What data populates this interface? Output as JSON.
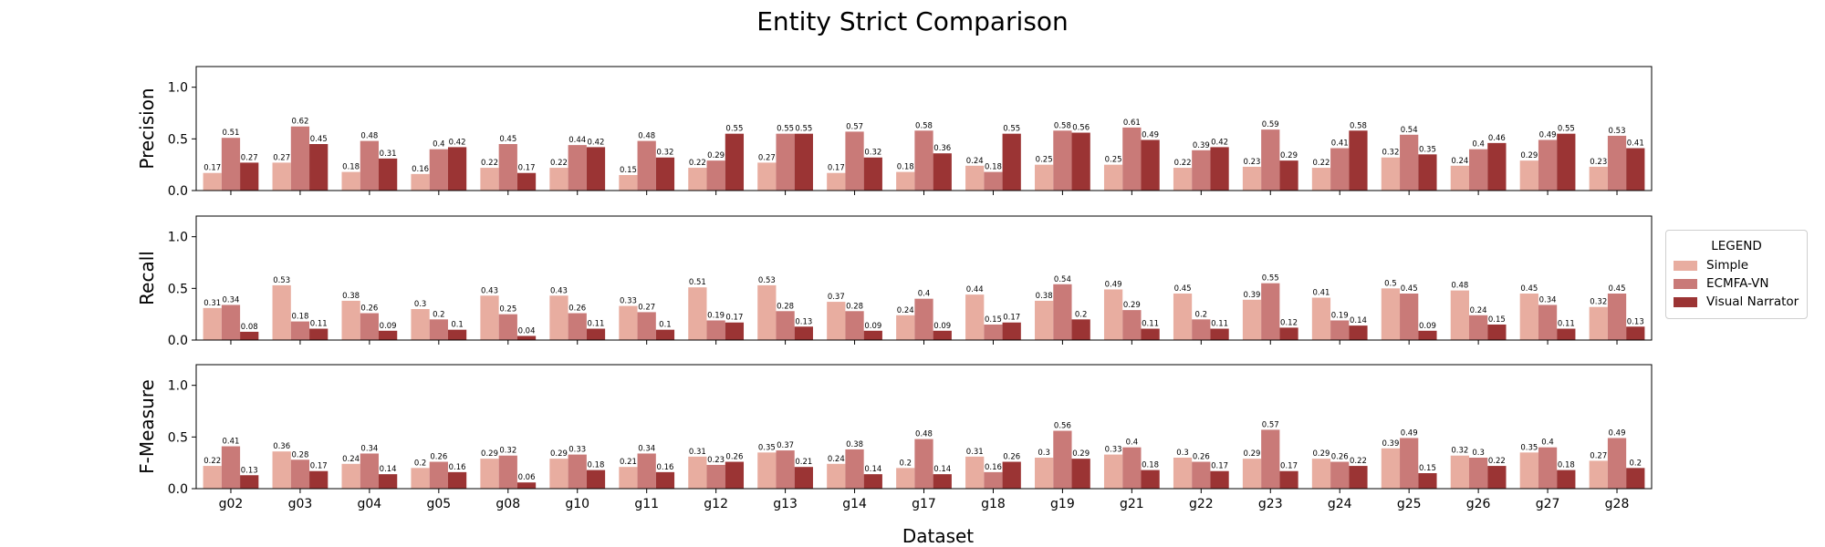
{
  "chart_data": {
    "type": "bar",
    "title": "Entity Strict Comparison",
    "xlabel": "Dataset",
    "categories": [
      "g02",
      "g03",
      "g04",
      "g05",
      "g08",
      "g10",
      "g11",
      "g12",
      "g13",
      "g14",
      "g17",
      "g18",
      "g19",
      "g21",
      "g22",
      "g23",
      "g24",
      "g25",
      "g26",
      "g27",
      "g28"
    ],
    "ylim": [
      0,
      1.2
    ],
    "yticks": [
      "0.0",
      "0.5",
      "1.0"
    ],
    "legend": {
      "title": "LEGEND",
      "placement": "right",
      "entries": [
        {
          "name": "Simple",
          "color": "#e8ada0"
        },
        {
          "name": "ECMFA-VN",
          "color": "#c97a78"
        },
        {
          "name": "Visual Narrator",
          "color": "#9b3434"
        }
      ]
    },
    "panels": [
      {
        "ylabel": "Precision",
        "series": [
          {
            "name": "Simple",
            "values": [
              0.17,
              0.27,
              0.18,
              0.16,
              0.22,
              0.22,
              0.15,
              0.22,
              0.27,
              0.17,
              0.18,
              0.24,
              0.25,
              0.25,
              0.22,
              0.23,
              0.22,
              0.32,
              0.24,
              0.29,
              0.23
            ]
          },
          {
            "name": "ECMFA-VN",
            "values": [
              0.51,
              0.62,
              0.48,
              0.4,
              0.45,
              0.44,
              0.48,
              0.29,
              0.55,
              0.57,
              0.58,
              0.18,
              0.58,
              0.61,
              0.39,
              0.59,
              0.41,
              0.54,
              0.4,
              0.49,
              0.53
            ]
          },
          {
            "name": "Visual Narrator",
            "values": [
              0.27,
              0.45,
              0.31,
              0.42,
              0.17,
              0.42,
              0.32,
              0.55,
              0.55,
              0.32,
              0.36,
              0.55,
              0.56,
              0.49,
              0.42,
              0.29,
              0.58,
              0.35,
              0.46,
              0.55,
              0.41
            ]
          }
        ]
      },
      {
        "ylabel": "Recall",
        "series": [
          {
            "name": "Simple",
            "values": [
              0.31,
              0.53,
              0.38,
              0.3,
              0.43,
              0.43,
              0.33,
              0.51,
              0.53,
              0.37,
              0.24,
              0.44,
              0.38,
              0.49,
              0.45,
              0.39,
              0.41,
              0.5,
              0.48,
              0.45,
              0.32
            ]
          },
          {
            "name": "ECMFA-VN",
            "values": [
              0.34,
              0.18,
              0.26,
              0.2,
              0.25,
              0.26,
              0.27,
              0.19,
              0.28,
              0.28,
              0.4,
              0.15,
              0.54,
              0.29,
              0.2,
              0.55,
              0.19,
              0.45,
              0.24,
              0.34,
              0.45
            ]
          },
          {
            "name": "Visual Narrator",
            "values": [
              0.08,
              0.11,
              0.09,
              0.1,
              0.04,
              0.11,
              0.1,
              0.17,
              0.13,
              0.09,
              0.09,
              0.17,
              0.2,
              0.11,
              0.11,
              0.12,
              0.14,
              0.09,
              0.15,
              0.11,
              0.13
            ]
          }
        ]
      },
      {
        "ylabel": "F-Measure",
        "series": [
          {
            "name": "Simple",
            "values": [
              0.22,
              0.36,
              0.24,
              0.2,
              0.29,
              0.29,
              0.21,
              0.31,
              0.35,
              0.24,
              0.2,
              0.31,
              0.3,
              0.33,
              0.3,
              0.29,
              0.29,
              0.39,
              0.32,
              0.35,
              0.27
            ]
          },
          {
            "name": "ECMFA-VN",
            "values": [
              0.41,
              0.28,
              0.34,
              0.26,
              0.32,
              0.33,
              0.34,
              0.23,
              0.37,
              0.38,
              0.48,
              0.16,
              0.56,
              0.4,
              0.26,
              0.57,
              0.26,
              0.49,
              0.3,
              0.4,
              0.49
            ]
          },
          {
            "name": "Visual Narrator",
            "values": [
              0.13,
              0.17,
              0.14,
              0.16,
              0.06,
              0.18,
              0.16,
              0.26,
              0.21,
              0.14,
              0.14,
              0.26,
              0.29,
              0.18,
              0.17,
              0.17,
              0.22,
              0.15,
              0.22,
              0.18,
              0.2
            ]
          }
        ]
      }
    ]
  }
}
